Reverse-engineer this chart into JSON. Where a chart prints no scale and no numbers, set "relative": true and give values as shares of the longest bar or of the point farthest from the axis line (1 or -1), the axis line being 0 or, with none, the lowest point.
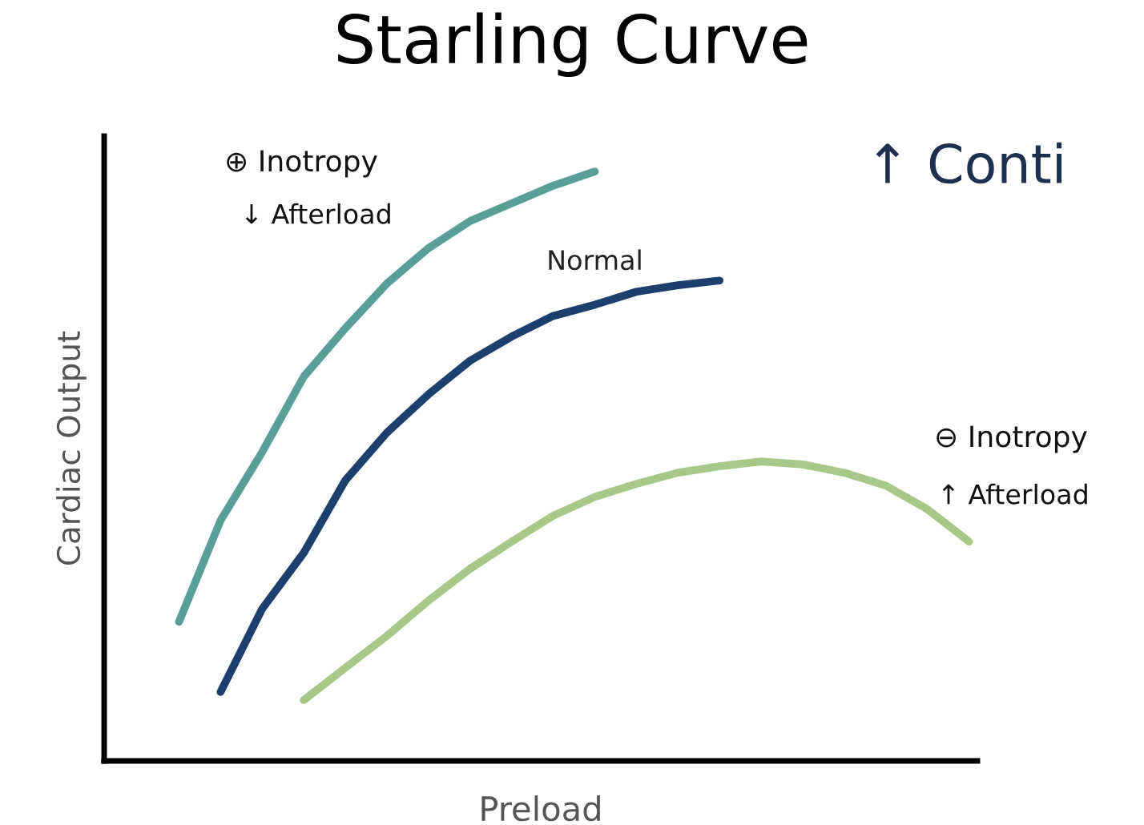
{
  "chart_data": {
    "type": "line",
    "title": "Starling Curve",
    "xlabel": "Preload",
    "ylabel": "Cardiac Output",
    "relative": true,
    "legend": false,
    "marker": "none",
    "line_style": "solid",
    "categories": [
      null,
      null,
      null,
      null,
      null,
      null,
      null,
      null,
      null,
      null,
      null,
      null,
      null,
      null,
      null,
      null,
      null,
      null,
      null,
      null,
      null
    ],
    "series": [
      {
        "color": "#5a9e98",
        "values": [
          null,
          0.236,
          0.408,
          0.524,
          0.652,
          0.734,
          0.81,
          0.87,
          0.916,
          0.946,
          0.976,
          1,
          null,
          null,
          null,
          null,
          null,
          null,
          null,
          null,
          null
        ]
      },
      {
        "name": "Normal",
        "color": "#1d3f6e",
        "values": [
          null,
          null,
          0.117,
          0.258,
          0.353,
          0.476,
          0.557,
          0.622,
          0.679,
          0.72,
          0.755,
          0.774,
          0.796,
          0.807,
          0.815,
          null,
          null,
          null,
          null,
          null,
          null
        ]
      },
      {
        "color": "#a8c88a",
        "values": [
          null,
          null,
          null,
          null,
          0.103,
          0.158,
          0.212,
          0.272,
          0.326,
          0.372,
          0.416,
          0.448,
          0.47,
          0.489,
          0.5,
          0.508,
          0.503,
          0.489,
          0.467,
          0.427,
          0.372
        ]
      }
    ],
    "annotations": [
      "⊕ Inotropy",
      "↓ Afterload",
      "⊖ Inotropy",
      "↑ Afterload",
      "↑ Conti"
    ]
  }
}
